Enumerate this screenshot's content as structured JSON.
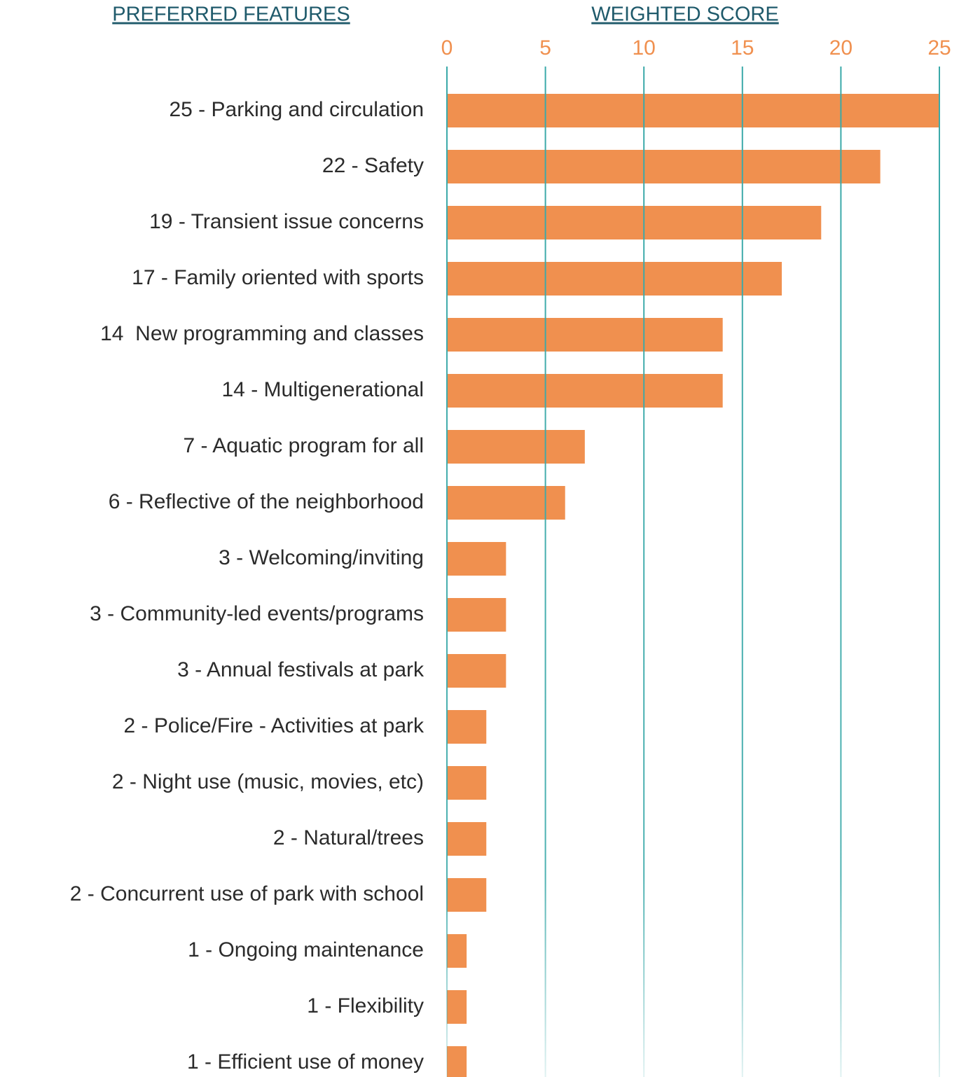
{
  "chart_data": {
    "type": "bar",
    "orientation": "horizontal",
    "y_label": "PREFERRED FEATURES",
    "x_label": "WEIGHTED SCORE",
    "categories": [
      "25 - Parking and circulation",
      "22 - Safety",
      "19 - Transient issue concerns",
      "17 - Family oriented with sports",
      "14  New programming and classes",
      "14 - Multigenerational",
      "7 - Aquatic program for all",
      "6 - Reflective of the neighborhood",
      "3 - Welcoming/inviting",
      "3 - Community-led events/programs",
      "3 - Annual festivals at park",
      "2 - Police/Fire - Activities at park",
      "2 - Night use (music, movies, etc)",
      "2 - Natural/trees",
      "2 - Concurrent use of park with school",
      "1 - Ongoing maintenance",
      "1 - Flexibility",
      "1 - Efficient use of money"
    ],
    "values": [
      25,
      22,
      19,
      17,
      14,
      14,
      7,
      6,
      3,
      3,
      3,
      2,
      2,
      2,
      2,
      1,
      1,
      1
    ],
    "color": "#f0904f",
    "grid_color": "#3aa9a9",
    "xlim": [
      0,
      25
    ],
    "xticks": [
      0,
      5,
      10,
      15,
      20,
      25
    ],
    "grid": true
  }
}
